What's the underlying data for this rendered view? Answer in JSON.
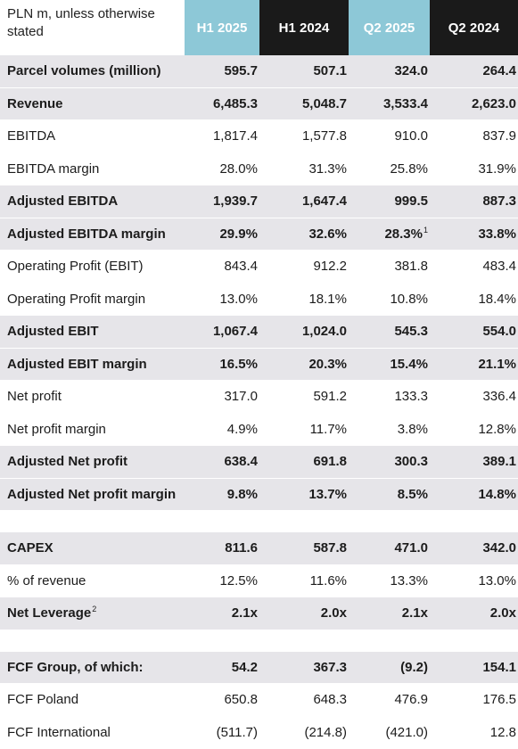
{
  "header": {
    "label": "PLN m, unless otherwise stated",
    "columns": [
      "H1 2025",
      "H1 2024",
      "Q2 2025",
      "Q2 2024"
    ]
  },
  "rows": [
    {
      "label": "Parcel volumes (million)",
      "bold": true,
      "values": [
        "595.7",
        "507.1",
        "324.0",
        "264.4"
      ]
    },
    {
      "label": "Revenue",
      "bold": true,
      "values": [
        "6,485.3",
        "5,048.7",
        "3,533.4",
        "2,623.0"
      ]
    },
    {
      "label": "EBITDA",
      "bold": false,
      "values": [
        "1,817.4",
        "1,577.8",
        "910.0",
        "837.9"
      ]
    },
    {
      "label": "EBITDA margin",
      "bold": false,
      "values": [
        "28.0%",
        "31.3%",
        "25.8%",
        "31.9%"
      ]
    },
    {
      "label": "Adjusted EBITDA",
      "bold": true,
      "values": [
        "1,939.7",
        "1,647.4",
        "999.5",
        "887.3"
      ]
    },
    {
      "label": "Adjusted EBITDA margin",
      "bold": true,
      "values": [
        "29.9%",
        "32.6%",
        "28.3%",
        "33.8%"
      ],
      "footnote_col": 2,
      "footnote": "1"
    },
    {
      "label": "Operating Profit (EBIT)",
      "bold": false,
      "values": [
        "843.4",
        "912.2",
        "381.8",
        "483.4"
      ]
    },
    {
      "label": "Operating Profit margin",
      "bold": false,
      "values": [
        "13.0%",
        "18.1%",
        "10.8%",
        "18.4%"
      ]
    },
    {
      "label": "Adjusted EBIT",
      "bold": true,
      "values": [
        "1,067.4",
        "1,024.0",
        "545.3",
        "554.0"
      ]
    },
    {
      "label": "Adjusted EBIT margin",
      "bold": true,
      "values": [
        "16.5%",
        "20.3%",
        "15.4%",
        "21.1%"
      ]
    },
    {
      "label": "Net profit",
      "bold": false,
      "values": [
        "317.0",
        "591.2",
        "133.3",
        "336.4"
      ]
    },
    {
      "label": "Net profit margin",
      "bold": false,
      "values": [
        "4.9%",
        "11.7%",
        "3.8%",
        "12.8%"
      ]
    },
    {
      "label": "Adjusted Net profit",
      "bold": true,
      "values": [
        "638.4",
        "691.8",
        "300.3",
        "389.1"
      ]
    },
    {
      "label": "Adjusted Net profit margin",
      "bold": true,
      "values": [
        "9.8%",
        "13.7%",
        "8.5%",
        "14.8%"
      ]
    },
    {
      "spacer": true
    },
    {
      "label": "CAPEX",
      "bold": true,
      "values": [
        "811.6",
        "587.8",
        "471.0",
        "342.0"
      ]
    },
    {
      "label": "% of revenue",
      "bold": false,
      "values": [
        "12.5%",
        "11.6%",
        "13.3%",
        "13.0%"
      ]
    },
    {
      "label": "Net Leverage",
      "bold": true,
      "label_footnote": "2",
      "values": [
        "2.1x",
        "2.0x",
        "2.1x",
        "2.0x"
      ]
    },
    {
      "spacer": true
    },
    {
      "label": "FCF Group, of which:",
      "bold": true,
      "values": [
        "54.2",
        "367.3",
        "(9.2)",
        "154.1"
      ]
    },
    {
      "label": "FCF Poland",
      "bold": false,
      "values": [
        "650.8",
        "648.3",
        "476.9",
        "176.5"
      ]
    },
    {
      "label": "FCF International",
      "bold": false,
      "values": [
        "(511.7)",
        "(214.8)",
        "(421.0)",
        "12.8"
      ]
    }
  ]
}
